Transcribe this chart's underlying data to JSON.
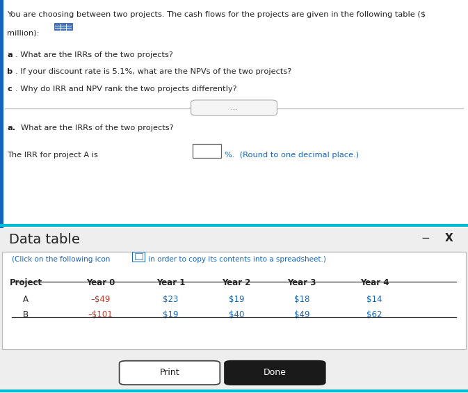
{
  "top_text_line1": "You are choosing between two projects. The cash flows for the projects are given in the following table ($",
  "top_text_line2": "million):",
  "questions": [
    "a. What are the IRRs of the two projects?",
    "b. If your discount rate is 5.1%, what are the NPVs of the two projects?",
    "c. Why do IRR and NPV rank the two projects differently?"
  ],
  "section_a_text": "What are the IRRs of the two projects?",
  "irr_line_pre": "The IRR for project A is",
  "irr_line_post": "%.  (Round to one decimal place.)",
  "data_table_title": "Data table",
  "spreadsheet_note": "(Click on the following icon",
  "spreadsheet_note2": " in order to copy its contents into a spreadsheet.)",
  "table_headers": [
    "Project",
    "Year 0",
    "Year 1",
    "Year 2",
    "Year 3",
    "Year 4"
  ],
  "table_row_A": [
    "A",
    "–$49",
    "$23",
    "$19",
    "$18",
    "$14"
  ],
  "table_row_B": [
    "B",
    "–$101",
    "$19",
    "$40",
    "$49",
    "$62"
  ],
  "print_btn_text": "Print",
  "done_btn_text": "Done",
  "teal_line": "#00bcd4",
  "dark_text": "#222222",
  "blue_text": "#1565c0",
  "red_text": "#c0392b",
  "grid_icon_color": "#4472c4",
  "divider_color": "#aaaaaa",
  "table_border_color": "#bbbbbb",
  "bottom_bg": "#eeeeee"
}
